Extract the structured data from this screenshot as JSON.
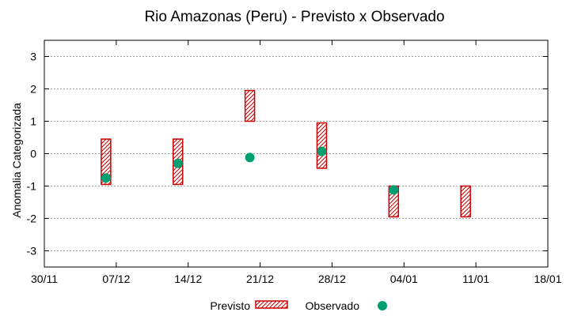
{
  "chart_data": {
    "type": "interval+scatter",
    "title": "Rio Amazonas (Peru) - Previsto x Observado",
    "xlabel": "",
    "ylabel": "Anomalia Categorizada",
    "ylim": [
      -3.5,
      3.5
    ],
    "yticks": [
      -3,
      -2,
      -1,
      0,
      1,
      2,
      3
    ],
    "grid": true,
    "x_tick_labels": [
      "30/11",
      "07/12",
      "14/12",
      "21/12",
      "28/12",
      "04/01",
      "11/01",
      "18/01"
    ],
    "x_tick_days": [
      0,
      7,
      14,
      21,
      28,
      35,
      42,
      49
    ],
    "xlim_days": [
      0,
      49
    ],
    "series": [
      {
        "name": "Previsto",
        "kind": "interval",
        "points": [
          {
            "day": 6,
            "low": -0.95,
            "high": 0.45
          },
          {
            "day": 13,
            "low": -0.95,
            "high": 0.45
          },
          {
            "day": 20,
            "low": 1.0,
            "high": 1.95
          },
          {
            "day": 27,
            "low": -0.45,
            "high": 0.95
          },
          {
            "day": 34,
            "low": -1.95,
            "high": -1.0
          },
          {
            "day": 41,
            "low": -1.95,
            "high": -1.0
          }
        ]
      },
      {
        "name": "Observado",
        "kind": "point",
        "points": [
          {
            "day": 6,
            "value": -0.75
          },
          {
            "day": 13,
            "value": -0.3
          },
          {
            "day": 20,
            "value": -0.12
          },
          {
            "day": 27,
            "value": 0.07
          },
          {
            "day": 34,
            "value": -1.12
          }
        ]
      }
    ],
    "legend": {
      "placement": "bottom-center",
      "items": [
        "Previsto",
        "Observado"
      ]
    },
    "colors": {
      "previsto": "#cc0000",
      "observado": "#009e73",
      "grid": "#a0a0a0",
      "axis": "#000000"
    }
  }
}
